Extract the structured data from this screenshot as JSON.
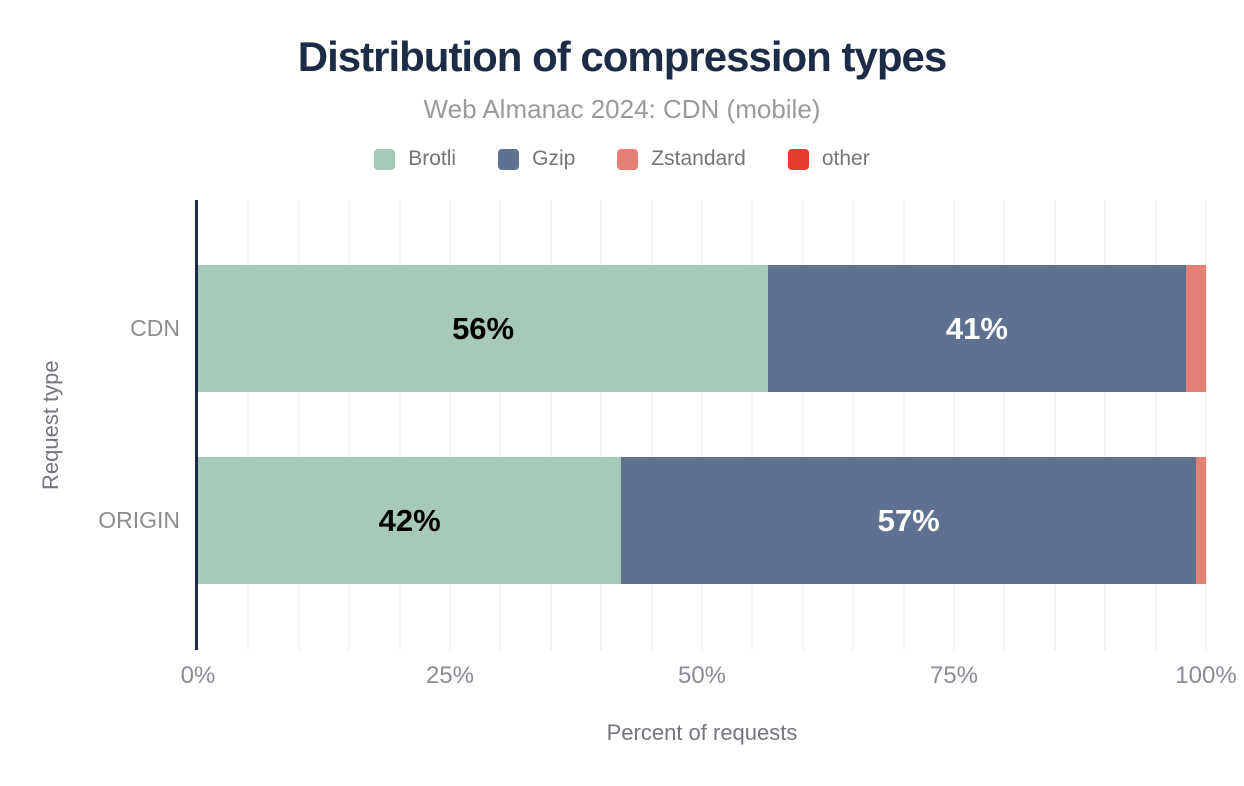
{
  "title": "Distribution of compression types",
  "subtitle": "Web Almanac 2024: CDN (mobile)",
  "colors": {
    "title": "#1e2b47",
    "subtitle": "#9a9a9a",
    "legend_text": "#757575",
    "axis_line": "#1e2b47",
    "gridline": "#f2f2f4",
    "tick_label": "#8b8b93",
    "axis_title": "#75757e",
    "category_label": "#8d8d8d",
    "brotli": "#a7c9b7",
    "gzip": "#5e7190",
    "zstandard": "#e57e74",
    "other": "#e23c2b"
  },
  "legend": [
    {
      "label": "Brotli",
      "color": "#a7c9b7"
    },
    {
      "label": "Gzip",
      "color": "#5e7190"
    },
    {
      "label": "Zstandard",
      "color": "#e57e74"
    },
    {
      "label": "other",
      "color": "#e23c2b"
    }
  ],
  "chart_data": {
    "type": "bar",
    "orientation": "horizontal",
    "stacked": true,
    "title": "Distribution of compression types",
    "subtitle": "Web Almanac 2024: CDN (mobile)",
    "xlabel": "Percent of requests",
    "ylabel": "Request type",
    "categories": [
      "CDN",
      "ORIGIN"
    ],
    "series": [
      {
        "name": "Brotli",
        "color": "#a7c9b7",
        "label_color": "#000000",
        "values": [
          56,
          42
        ],
        "labels": [
          "56%",
          "42%"
        ]
      },
      {
        "name": "Gzip",
        "color": "#5e7190",
        "label_color": "#ffffff",
        "values": [
          41,
          57
        ],
        "labels": [
          "41%",
          "57%"
        ]
      },
      {
        "name": "Zstandard",
        "color": "#e57e74",
        "label_color": "#000000",
        "values": [
          2,
          1
        ],
        "labels": [
          "",
          ""
        ]
      },
      {
        "name": "other",
        "color": "#e23c2b",
        "label_color": "#ffffff",
        "values": [
          0,
          0
        ],
        "labels": [
          "",
          ""
        ]
      }
    ],
    "x_ticks": [
      "0%",
      "25%",
      "50%",
      "75%",
      "100%"
    ],
    "x_tick_values": [
      0,
      25,
      50,
      75,
      100
    ],
    "xlim": [
      0,
      100
    ],
    "gridline_step": 5,
    "legend_position": "top",
    "grid": true
  }
}
